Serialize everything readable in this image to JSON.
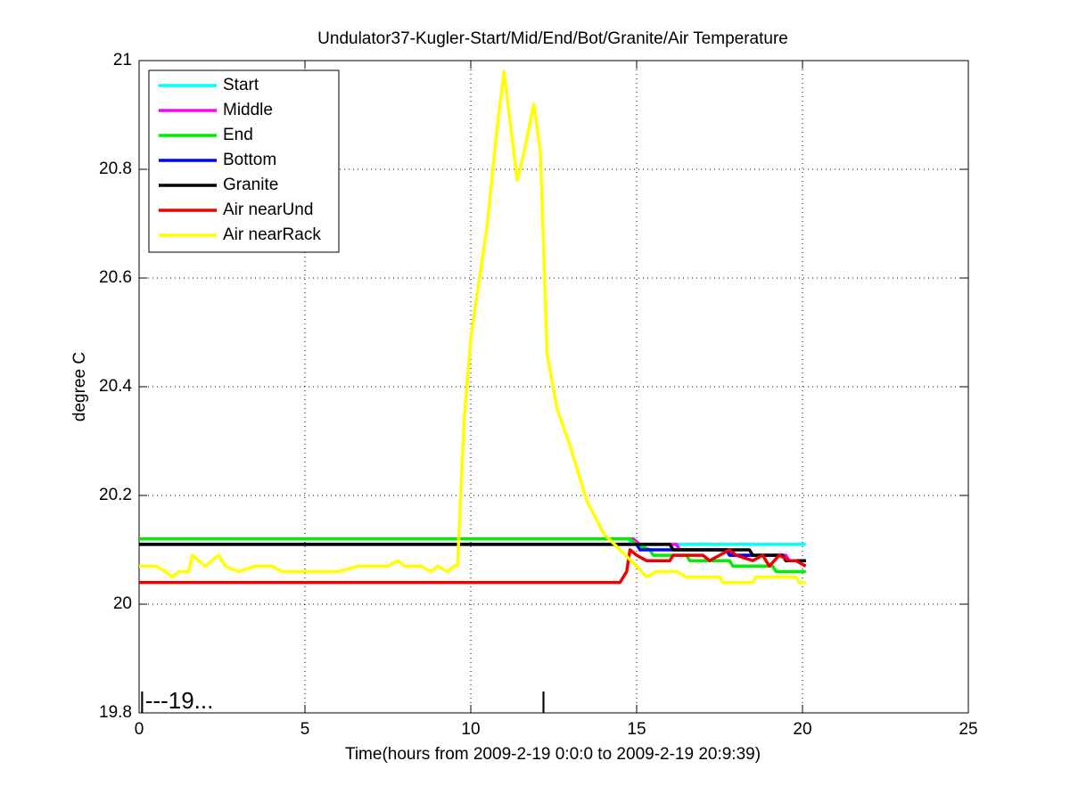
{
  "chart_data": {
    "type": "line",
    "title": "Undulator37-Kugler-Start/Mid/End/Bot/Granite/Air Temperature",
    "x_label": "Time(hours from 2009-2-19 0:0:0 to 2009-2-19 20:9:39)",
    "y_label": "degree C",
    "xlim": [
      0,
      25
    ],
    "xticks": [
      0,
      5,
      10,
      15,
      20,
      25
    ],
    "ylim": [
      19.8,
      21
    ],
    "yticks": [
      19.8,
      20,
      20.2,
      20.4,
      20.6,
      20.8,
      21
    ],
    "grid": true,
    "legend": "upper left",
    "annotations": [
      {
        "text": "|---19...",
        "x": 0
      },
      {
        "text": "|",
        "x": 12.1
      }
    ],
    "series": [
      {
        "name": "Start",
        "color": "#00ffff",
        "x": [
          0,
          14.8,
          14.8,
          20.1
        ],
        "values": [
          20.12,
          20.12,
          20.11,
          20.11
        ]
      },
      {
        "name": "Middle",
        "color": "#ff00ff",
        "x": [
          0,
          14.9,
          15.1,
          16.2,
          16.3,
          17.8,
          17.9,
          19.5,
          19.6,
          20.1
        ],
        "values": [
          20.12,
          20.12,
          20.11,
          20.11,
          20.1,
          20.1,
          20.09,
          20.09,
          20.08,
          20.08
        ]
      },
      {
        "name": "End",
        "color": "#00ee00",
        "x": [
          0,
          14.8,
          15.0,
          15.4,
          15.5,
          16.5,
          16.6,
          17.8,
          17.9,
          19.1,
          19.2,
          20.1
        ],
        "values": [
          20.12,
          20.12,
          20.11,
          20.1,
          20.09,
          20.09,
          20.08,
          20.08,
          20.07,
          20.07,
          20.06,
          20.06
        ]
      },
      {
        "name": "Bottom",
        "color": "#0000ff",
        "x": [
          0,
          15.0,
          15.1,
          17.7,
          17.8,
          19.4,
          19.5,
          20.1
        ],
        "values": [
          20.11,
          20.11,
          20.1,
          20.1,
          20.09,
          20.09,
          20.08,
          20.08
        ]
      },
      {
        "name": "Granite",
        "color": "#000000",
        "x": [
          0,
          16.0,
          16.1,
          18.4,
          18.5,
          19.4,
          19.5,
          20.1
        ],
        "values": [
          20.11,
          20.11,
          20.1,
          20.1,
          20.09,
          20.09,
          20.08,
          20.08
        ]
      },
      {
        "name": "Air nearUnd",
        "color": "#ee0000",
        "x": [
          0,
          14.5,
          14.7,
          14.8,
          15.0,
          15.3,
          16.0,
          16.1,
          17.0,
          17.2,
          17.5,
          17.8,
          18.0,
          18.5,
          18.8,
          19.0,
          19.3,
          19.6,
          19.8,
          20.1
        ],
        "values": [
          20.04,
          20.04,
          20.06,
          20.1,
          20.09,
          20.08,
          20.08,
          20.09,
          20.09,
          20.08,
          20.09,
          20.1,
          20.09,
          20.08,
          20.09,
          20.07,
          20.09,
          20.08,
          20.08,
          20.07
        ]
      },
      {
        "name": "Air nearRack",
        "color": "#ffff00",
        "x": [
          0,
          0.5,
          0.8,
          1.0,
          1.2,
          1.5,
          1.6,
          1.8,
          2.0,
          2.2,
          2.4,
          2.6,
          3.0,
          3.5,
          4.0,
          4.3,
          5.0,
          6.0,
          6.6,
          7.0,
          7.5,
          7.8,
          8.0,
          8.5,
          8.8,
          9.0,
          9.3,
          9.5,
          9.6,
          9.8,
          10.0,
          10.5,
          10.8,
          11.0,
          11.2,
          11.4,
          11.6,
          11.9,
          12.1,
          12.3,
          12.6,
          13.0,
          13.5,
          14.0,
          14.5,
          15.0,
          15.3,
          15.6,
          16.2,
          16.5,
          17.5,
          17.6,
          18.5,
          18.6,
          19.8,
          19.9,
          20.1
        ],
        "values": [
          20.07,
          20.07,
          20.06,
          20.05,
          20.06,
          20.06,
          20.09,
          20.08,
          20.07,
          20.08,
          20.09,
          20.07,
          20.06,
          20.07,
          20.07,
          20.06,
          20.06,
          20.06,
          20.07,
          20.07,
          20.07,
          20.08,
          20.07,
          20.07,
          20.06,
          20.07,
          20.06,
          20.07,
          20.07,
          20.34,
          20.49,
          20.7,
          20.88,
          20.98,
          20.88,
          20.78,
          20.83,
          20.92,
          20.83,
          20.46,
          20.36,
          20.29,
          20.19,
          20.13,
          20.1,
          20.07,
          20.05,
          20.06,
          20.06,
          20.05,
          20.05,
          20.04,
          20.04,
          20.05,
          20.05,
          20.04,
          20.04
        ]
      }
    ]
  }
}
